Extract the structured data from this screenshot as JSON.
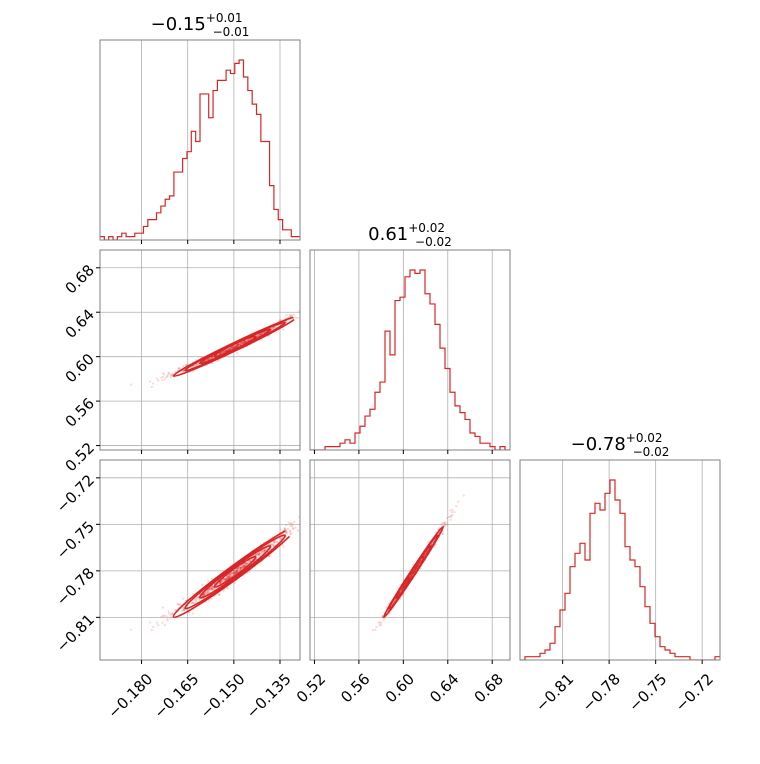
{
  "chart_data": {
    "type": "corner",
    "color": "#d62728",
    "grid": true,
    "parameters": [
      {
        "title": {
          "median": "−0.15",
          "plus": "+0.01",
          "minus": "−0.01"
        },
        "range": [
          -0.1935,
          -0.1285
        ],
        "ticks": [
          {
            "value": -0.18,
            "label": "−0.180"
          },
          {
            "value": -0.165,
            "label": "−0.165"
          },
          {
            "value": -0.15,
            "label": "−0.150"
          },
          {
            "value": -0.135,
            "label": "−0.135"
          }
        ],
        "hist": [
          1,
          0,
          1,
          0,
          1,
          2,
          1,
          1,
          2,
          2,
          4,
          6,
          6,
          8,
          10,
          12,
          13,
          20,
          20,
          24,
          26,
          32,
          29,
          43,
          43,
          36,
          44,
          47,
          47,
          50,
          49,
          52,
          53,
          48,
          44,
          40,
          37,
          29,
          29,
          16,
          9,
          6,
          3,
          3,
          1,
          1
        ]
      },
      {
        "title": {
          "median": "0.61",
          "plus": "+0.02",
          "minus": "−0.02"
        },
        "range": [
          0.516,
          0.696
        ],
        "ticks": [
          {
            "value": 0.52,
            "label": "0.52"
          },
          {
            "value": 0.56,
            "label": "0.56"
          },
          {
            "value": 0.6,
            "label": "0.60"
          },
          {
            "value": 0.64,
            "label": "0.64"
          },
          {
            "value": 0.68,
            "label": "0.68"
          }
        ],
        "hist": [
          0,
          0,
          0,
          1,
          1,
          1,
          2,
          3,
          2,
          5,
          7,
          10,
          12,
          17,
          20,
          35,
          28,
          44,
          45,
          51,
          53,
          52,
          53,
          46,
          43,
          37,
          30,
          24,
          17,
          13,
          11,
          9,
          5,
          4,
          2,
          2,
          1,
          0,
          1,
          0
        ]
      },
      {
        "title": {
          "median": "−0.78",
          "plus": "+0.02",
          "minus": "−0.02"
        },
        "range": [
          -0.8375,
          -0.7085
        ],
        "ticks": [
          {
            "value": -0.81,
            "label": "−0.81"
          },
          {
            "value": -0.78,
            "label": "−0.78"
          },
          {
            "value": -0.75,
            "label": "−0.75"
          },
          {
            "value": -0.72,
            "label": "−0.72"
          }
        ],
        "hist": [
          0,
          1,
          1,
          1,
          2,
          3,
          5,
          10,
          15,
          20,
          28,
          32,
          35,
          30,
          44,
          47,
          45,
          50,
          54,
          48,
          44,
          34,
          30,
          28,
          22,
          16,
          11,
          7,
          4,
          3,
          2,
          1,
          1,
          1,
          0,
          0,
          0,
          0,
          0,
          1
        ]
      }
    ],
    "left_tick_labels_rotated_45": true
  }
}
